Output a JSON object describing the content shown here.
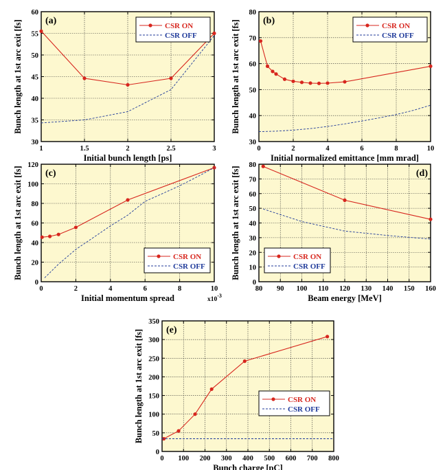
{
  "colors": {
    "plot_bg": "#fdf8cf",
    "grid": "#333333",
    "csr_on": "#d7261e",
    "csr_off": "#1f3a9a",
    "legend_on_text": "#d7261e",
    "legend_off_text": "#1f3a9a"
  },
  "chart_data": [
    {
      "id": "a",
      "type": "line",
      "panel_label": "(a)",
      "xlabel": "Initial bunch length [ps]",
      "ylabel": "Bunch length at 1st arc exit [fs]",
      "xlim": [
        1,
        3
      ],
      "ylim": [
        30,
        60
      ],
      "xticks": [
        1,
        1.5,
        2,
        2.5,
        3
      ],
      "xtick_labels": [
        "1",
        "1.5",
        "2",
        "2.5",
        "3"
      ],
      "yticks": [
        30,
        35,
        40,
        45,
        50,
        55,
        60
      ],
      "ytick_labels": [
        "30",
        "35",
        "40",
        "45",
        "50",
        "55",
        "60"
      ],
      "x_multiplier": "",
      "grid": true,
      "legend_position": "top-right",
      "series": [
        {
          "name": "CSR ON",
          "style": "solid-markers",
          "x": [
            1,
            1.5,
            2,
            2.5,
            3
          ],
          "y": [
            55.5,
            44.6,
            43.1,
            44.6,
            55.0
          ]
        },
        {
          "name": "CSR OFF",
          "style": "dashed",
          "x": [
            1,
            1.5,
            2,
            2.5,
            3
          ],
          "y": [
            34.3,
            35.0,
            36.9,
            42.0,
            54.5
          ]
        }
      ]
    },
    {
      "id": "b",
      "type": "line",
      "panel_label": "(b)",
      "xlabel": "Initial normalized emittance [mm mrad]",
      "ylabel": "Bunch length at 1st arc exit [fs]",
      "xlim": [
        0,
        10
      ],
      "ylim": [
        30,
        80
      ],
      "xticks": [
        0,
        2,
        4,
        6,
        8,
        10
      ],
      "xtick_labels": [
        "0",
        "2",
        "4",
        "6",
        "8",
        "10"
      ],
      "yticks": [
        30,
        40,
        50,
        60,
        70,
        80
      ],
      "ytick_labels": [
        "30",
        "40",
        "50",
        "60",
        "70",
        "80"
      ],
      "x_multiplier": "",
      "grid": true,
      "legend_position": "top-right",
      "series": [
        {
          "name": "CSR ON",
          "style": "solid-markers",
          "x": [
            0.1,
            0.5,
            0.8,
            1.0,
            1.5,
            2.0,
            2.5,
            3.0,
            3.5,
            4.0,
            5.0,
            10.0
          ],
          "y": [
            68.7,
            59.0,
            57.0,
            56.0,
            54.0,
            53.2,
            52.8,
            52.5,
            52.4,
            52.5,
            53.0,
            59.0
          ]
        },
        {
          "name": "CSR OFF",
          "style": "dashed",
          "x": [
            0,
            1,
            2,
            3,
            4,
            5,
            6,
            7,
            8,
            9,
            10
          ],
          "y": [
            33.8,
            34.0,
            34.4,
            35.0,
            35.8,
            36.8,
            37.9,
            39.1,
            40.4,
            42.0,
            44.0
          ]
        }
      ]
    },
    {
      "id": "c",
      "type": "line",
      "panel_label": "(c)",
      "xlabel": "Initial momentum spread",
      "ylabel": "Bunch length at 1st arc exit [fs]",
      "xlim": [
        0,
        10
      ],
      "ylim": [
        0,
        120
      ],
      "xticks": [
        0,
        2,
        4,
        6,
        8,
        10
      ],
      "xtick_labels": [
        "0",
        "2",
        "4",
        "6",
        "8",
        "10"
      ],
      "yticks": [
        0,
        20,
        40,
        60,
        80,
        100,
        120
      ],
      "ytick_labels": [
        "0",
        "20",
        "40",
        "60",
        "80",
        "100",
        "120"
      ],
      "x_multiplier": "x10",
      "x_multiplier_exp": "-3",
      "grid": true,
      "legend_position": "bottom-right",
      "series": [
        {
          "name": "CSR ON",
          "style": "solid-markers",
          "x": [
            0.05,
            0.5,
            1,
            2,
            5,
            10
          ],
          "y": [
            45.5,
            46.3,
            48.3,
            55.5,
            83.5,
            116.5
          ]
        },
        {
          "name": "CSR OFF",
          "style": "dashed",
          "x": [
            0.2,
            1,
            2,
            3,
            4,
            5,
            6,
            7,
            8,
            9,
            10
          ],
          "y": [
            4,
            18,
            33,
            45,
            57,
            68,
            82,
            90,
            98,
            107,
            116.5
          ]
        }
      ]
    },
    {
      "id": "d",
      "type": "line",
      "panel_label": "(d)",
      "xlabel": "Beam energy [MeV]",
      "ylabel": "Bunch length at 1st arc exit [fs]",
      "xlim": [
        80,
        160
      ],
      "ylim": [
        0,
        80
      ],
      "xticks": [
        80,
        90,
        100,
        110,
        120,
        130,
        140,
        150,
        160
      ],
      "xtick_labels": [
        "80",
        "90",
        "100",
        "110",
        "120",
        "130",
        "140",
        "150",
        "160"
      ],
      "yticks": [
        0,
        10,
        20,
        30,
        40,
        50,
        60,
        70,
        80
      ],
      "ytick_labels": [
        "0",
        "10",
        "20",
        "30",
        "40",
        "50",
        "60",
        "70",
        "80"
      ],
      "x_multiplier": "",
      "grid": true,
      "legend_position": "bottom-left",
      "series": [
        {
          "name": "CSR ON",
          "style": "solid-markers",
          "x": [
            82,
            120,
            160
          ],
          "y": [
            78.5,
            55.5,
            42.5
          ]
        },
        {
          "name": "CSR OFF",
          "style": "dashed",
          "x": [
            82,
            100,
            120,
            140,
            160
          ],
          "y": [
            49.5,
            41.0,
            34.5,
            31.5,
            29.0
          ]
        }
      ]
    },
    {
      "id": "e",
      "type": "line",
      "panel_label": "(e)",
      "xlabel": "Bunch charge [pC]",
      "ylabel": "Bunch length at 1st arc exit [fs]",
      "xlim": [
        0,
        800
      ],
      "ylim": [
        0,
        350
      ],
      "xticks": [
        0,
        100,
        200,
        300,
        400,
        500,
        600,
        700,
        800
      ],
      "xtick_labels": [
        "0",
        "100",
        "200",
        "300",
        "400",
        "500",
        "600",
        "700",
        "800"
      ],
      "yticks": [
        0,
        50,
        100,
        150,
        200,
        250,
        300,
        350
      ],
      "ytick_labels": [
        "0",
        "50",
        "100",
        "150",
        "200",
        "250",
        "300",
        "350"
      ],
      "x_multiplier": "",
      "grid": true,
      "legend_position": "bottom-right",
      "series": [
        {
          "name": "CSR ON",
          "style": "solid-markers",
          "x": [
            8,
            77,
            154,
            231,
            385,
            770
          ],
          "y": [
            34,
            55,
            100,
            167,
            242,
            308
          ]
        },
        {
          "name": "CSR OFF",
          "style": "dashed",
          "x": [
            0,
            800
          ],
          "y": [
            34,
            34
          ]
        }
      ]
    }
  ]
}
